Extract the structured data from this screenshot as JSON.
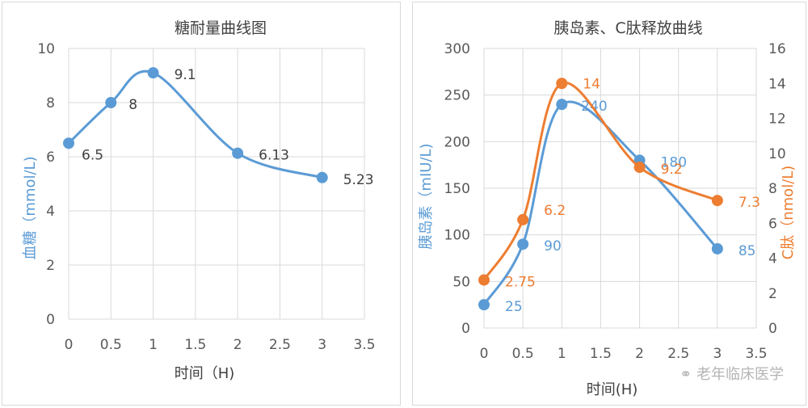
{
  "colors": {
    "blue": "#5b9bd5",
    "orange": "#ed7d31"
  },
  "watermark": "老年临床医学",
  "chart_data": [
    {
      "type": "scatter",
      "title": "糖耐量曲线图",
      "xlabel": "时间（H)",
      "ylabel": "血糖（mmol/L)",
      "xlim": [
        0,
        3.5
      ],
      "ylim": [
        0,
        10
      ],
      "xticks": [
        "0",
        "0.5",
        "1",
        "1.5",
        "2",
        "2.5",
        "3",
        "3.5"
      ],
      "yticks": [
        "0",
        "2",
        "4",
        "6",
        "8",
        "10"
      ],
      "series": [
        {
          "x": [
            0,
            0.5,
            1,
            2,
            3
          ],
          "y": [
            6.5,
            8,
            9.1,
            6.13,
            5.23
          ],
          "labels": [
            "6.5",
            "8",
            "9.1",
            "6.13",
            "5.23"
          ]
        }
      ],
      "grid": true,
      "smooth": true
    },
    {
      "type": "scatter",
      "title": "胰岛素、C肽释放曲线",
      "xlabel": "时间(H)",
      "ylabel": "胰岛素（mIU/L)",
      "y2label": "C肽（nmol/L)",
      "xlim": [
        0,
        3.5
      ],
      "ylim": [
        0,
        300
      ],
      "y2lim": [
        0,
        16
      ],
      "xticks": [
        "0",
        "0.5",
        "1",
        "1.5",
        "2",
        "2.5",
        "3",
        "3.5"
      ],
      "yticks": [
        "0",
        "50",
        "100",
        "150",
        "200",
        "250",
        "300"
      ],
      "y2ticks": [
        "0",
        "2",
        "4",
        "6",
        "8",
        "10",
        "12",
        "14",
        "16"
      ],
      "series": [
        {
          "x": [
            0,
            0.5,
            1,
            2,
            3
          ],
          "y": [
            25,
            90,
            240,
            180,
            85
          ],
          "labels": [
            "25",
            "90",
            "240",
            "180",
            "85"
          ],
          "axis": "left"
        },
        {
          "x": [
            0,
            0.5,
            1,
            2,
            3
          ],
          "y": [
            2.75,
            6.2,
            14,
            9.2,
            7.3
          ],
          "labels": [
            "2.75",
            "6.2",
            "14",
            "9.2",
            "7.3"
          ],
          "axis": "right"
        }
      ],
      "grid": true,
      "smooth": true
    }
  ]
}
